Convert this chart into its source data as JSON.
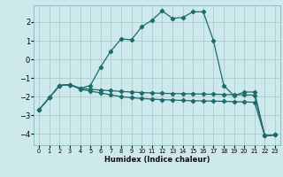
{
  "xlabel": "Humidex (Indice chaleur)",
  "background_color": "#cee9eb",
  "grid_color": "#aacdd0",
  "line_color": "#1e6b6b",
  "xlim": [
    -0.5,
    23.5
  ],
  "ylim": [
    -4.6,
    2.9
  ],
  "yticks": [
    -4,
    -3,
    -2,
    -1,
    0,
    1,
    2
  ],
  "xticks": [
    0,
    1,
    2,
    3,
    4,
    5,
    6,
    7,
    8,
    9,
    10,
    11,
    12,
    13,
    14,
    15,
    16,
    17,
    18,
    19,
    20,
    21,
    22,
    23
  ],
  "curve1_x": [
    0,
    1,
    2,
    3,
    4,
    5,
    6,
    7,
    8,
    9,
    10,
    11,
    12,
    13,
    14,
    15,
    16,
    17,
    18,
    19,
    20,
    21,
    22,
    23
  ],
  "curve1_y": [
    -2.7,
    -2.05,
    -1.4,
    -1.35,
    -1.55,
    -1.4,
    -0.4,
    0.45,
    1.1,
    1.05,
    1.75,
    2.1,
    2.6,
    2.2,
    2.25,
    2.55,
    2.55,
    1.0,
    -1.4,
    -1.95,
    -1.75,
    -1.75,
    -4.1,
    -4.05
  ],
  "curve2_x": [
    0,
    1,
    2,
    3,
    4,
    5,
    6,
    7,
    8,
    9,
    10,
    11,
    12,
    13,
    14,
    15,
    16,
    17,
    18,
    19,
    20,
    21,
    22,
    23
  ],
  "curve2_y": [
    -2.7,
    -2.05,
    -1.4,
    -1.35,
    -1.55,
    -1.6,
    -1.65,
    -1.68,
    -1.72,
    -1.75,
    -1.78,
    -1.8,
    -1.82,
    -1.83,
    -1.84,
    -1.85,
    -1.86,
    -1.87,
    -1.88,
    -1.9,
    -1.9,
    -1.92,
    -4.1,
    -4.05
  ],
  "curve3_x": [
    0,
    1,
    2,
    3,
    4,
    5,
    6,
    7,
    8,
    9,
    10,
    11,
    12,
    13,
    14,
    15,
    16,
    17,
    18,
    19,
    20,
    21,
    22,
    23
  ],
  "curve3_y": [
    -2.7,
    -2.05,
    -1.4,
    -1.35,
    -1.6,
    -1.7,
    -1.8,
    -1.9,
    -2.0,
    -2.05,
    -2.1,
    -2.13,
    -2.16,
    -2.18,
    -2.2,
    -2.22,
    -2.23,
    -2.24,
    -2.25,
    -2.27,
    -2.28,
    -2.3,
    -4.1,
    -4.05
  ]
}
